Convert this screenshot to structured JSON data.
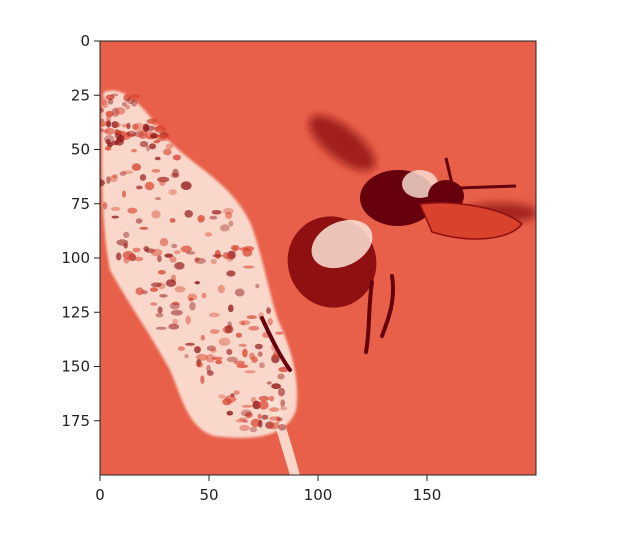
{
  "chart_data": {
    "type": "heatmap",
    "title": "",
    "xlabel": "",
    "ylabel": "",
    "colormap": "Reds",
    "image_extent": {
      "x": [
        0,
        200
      ],
      "y": [
        0,
        200
      ]
    },
    "y_axis_inverted": true,
    "grid": false,
    "legend": "none",
    "x_ticks": [
      0,
      50,
      100,
      150
    ],
    "y_ticks": [
      0,
      25,
      50,
      75,
      100,
      125,
      150,
      175
    ],
    "x_tick_labels": [
      "0",
      "50",
      "100",
      "150"
    ],
    "y_tick_labels": [
      "0",
      "25",
      "50",
      "75",
      "100",
      "125",
      "150",
      "175"
    ]
  },
  "image": {
    "subject_icon_names": [
      "flower-spike-icon",
      "bumblebee-icon"
    ],
    "colors": {
      "background": "#e8604a",
      "light": "#fbe3d6",
      "mid": "#d9432e",
      "dark": "#8e1010",
      "darkest": "#67000d"
    }
  }
}
